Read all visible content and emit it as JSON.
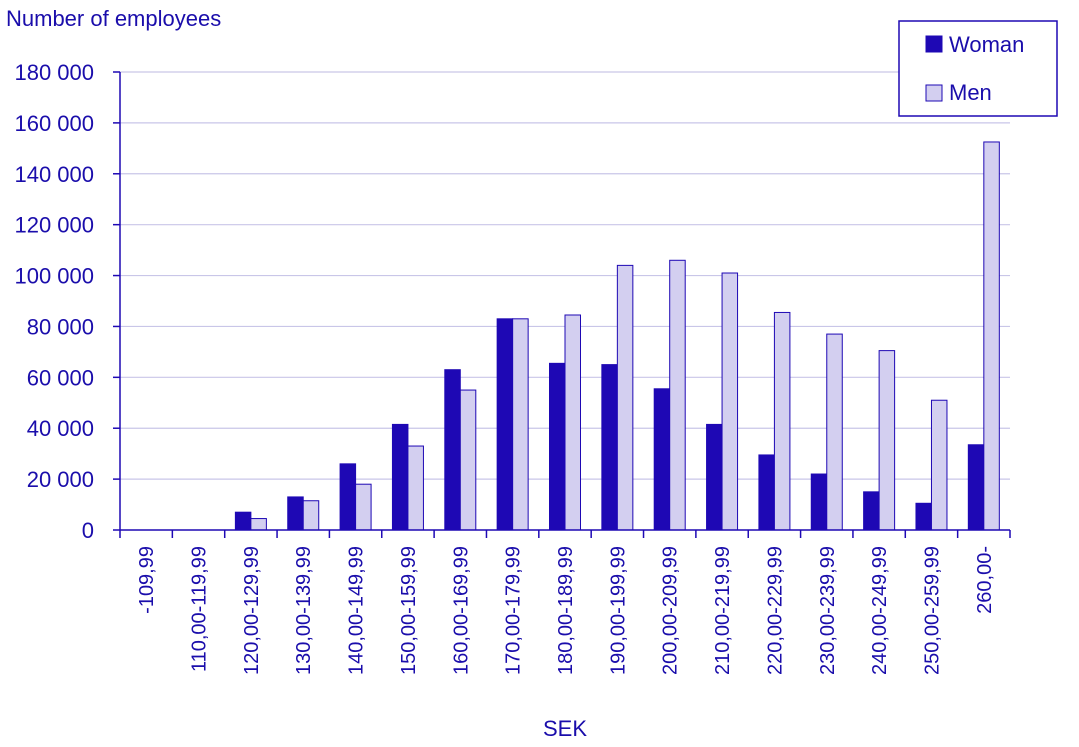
{
  "chart_data": {
    "type": "bar",
    "title": "",
    "ylabel": "Number of employees",
    "xlabel": "SEK",
    "ylim": [
      0,
      180000
    ],
    "yticks": [
      0,
      20000,
      40000,
      60000,
      80000,
      100000,
      120000,
      140000,
      160000,
      180000
    ],
    "ytick_labels": [
      "0",
      "20 000",
      "40 000",
      "60 000",
      "80 000",
      "100 000",
      "120 000",
      "140 000",
      "160 000",
      "180 000"
    ],
    "categories": [
      "-109,99",
      "110,00-119,99",
      "120,00-129,99",
      "130,00-139,99",
      "140,00-149,99",
      "150,00-159,99",
      "160,00-169,99",
      "170,00-179,99",
      "180,00-189,99",
      "190,00-199,99",
      "200,00-209,99",
      "210,00-219,99",
      "220,00-229,99",
      "230,00-239,99",
      "240,00-249,99",
      "250,00-259,99",
      "260,00-"
    ],
    "series": [
      {
        "name": "Woman",
        "color": "#1e08b4",
        "values": [
          0,
          0,
          7000,
          13000,
          26000,
          41500,
          63000,
          83000,
          65500,
          65000,
          55500,
          41500,
          29500,
          22000,
          15000,
          10500,
          33500
        ]
      },
      {
        "name": "Men",
        "color": "#d3cff0",
        "values": [
          0,
          0,
          4500,
          11500,
          18000,
          33000,
          55000,
          83000,
          84500,
          104000,
          106000,
          101000,
          85500,
          77000,
          70500,
          51000,
          152500
        ]
      }
    ],
    "grid": true,
    "legend_position": "top-right"
  }
}
